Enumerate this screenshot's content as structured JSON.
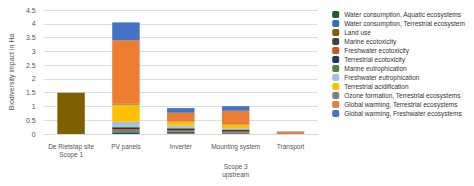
{
  "chart_data": {
    "type": "bar",
    "categories": [
      "De Rietstap site\nScope 1",
      "PV panels",
      "Inverter",
      "Mounting system",
      "Transport"
    ],
    "ylabel": "Biodiversity impact in Ha",
    "ylim": [
      0,
      4.5
    ],
    "yticks": [
      0,
      0.5,
      1,
      1.5,
      2,
      2.5,
      3,
      3.5,
      4,
      4.5
    ],
    "grid": true,
    "stacked": true,
    "legend": "right",
    "series": [
      {
        "name": "Water consumption, Aquatic ecosystems",
        "color": "#1f5c1f",
        "values": [
          0,
          0.04,
          0.02,
          0.02,
          0.0
        ]
      },
      {
        "name": "Water consumption, Terrestrial ecosystem",
        "color": "#2e75b6",
        "values": [
          0,
          0.05,
          0.02,
          0.02,
          0.0
        ]
      },
      {
        "name": "Land use",
        "color": "#7f6000",
        "values": [
          1.5,
          0,
          0,
          0,
          0
        ]
      },
      {
        "name": "Marine ecotoxicity",
        "color": "#404040",
        "values": [
          0,
          0.04,
          0.04,
          0.02,
          0.0
        ]
      },
      {
        "name": "Freshwater ecotoxicity",
        "color": "#c55a11",
        "values": [
          0,
          0.05,
          0.05,
          0.05,
          0.0
        ]
      },
      {
        "name": "Terrestrial ecotoxicity",
        "color": "#203864",
        "values": [
          0,
          0.04,
          0.06,
          0.04,
          0.0
        ]
      },
      {
        "name": "Marine eutrophication",
        "color": "#548235",
        "values": [
          0,
          0.04,
          0.04,
          0.02,
          0.0
        ]
      },
      {
        "name": "Freshwater eutrophication",
        "color": "#9dc3e6",
        "values": [
          0,
          0.18,
          0.07,
          0.04,
          0.0
        ]
      },
      {
        "name": "Terrestrial acidification",
        "color": "#ffc000",
        "values": [
          0,
          0.62,
          0.13,
          0.13,
          0.0
        ]
      },
      {
        "name": "Ozone formation, Terrestrial ecosystems",
        "color": "#808080",
        "values": [
          0,
          0.04,
          0.02,
          0.02,
          0.0
        ]
      },
      {
        "name": "Global warming, Terrestrial ecosystems",
        "color": "#ed7d31",
        "values": [
          0,
          2.3,
          0.32,
          0.48,
          0.07
        ]
      },
      {
        "name": "Global warming, Freshwater ecosystems",
        "color": "#4472c4",
        "values": [
          0,
          0.65,
          0.17,
          0.17,
          0.02
        ]
      }
    ],
    "annotations": [
      {
        "text": "Scope 3\nupstream",
        "x": "Mounting system"
      }
    ]
  }
}
